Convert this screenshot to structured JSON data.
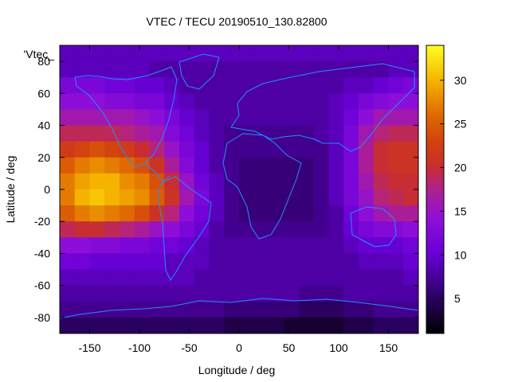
{
  "chart_data": {
    "type": "heatmap",
    "title": "VTEC / TECU 20190510_130.82800",
    "xlabel": "Longitude / deg",
    "ylabel": "Latitude / deg",
    "key_label": "'Vtec_",
    "xlim": [
      -180,
      180
    ],
    "ylim": [
      -90,
      90
    ],
    "x_ticks": [
      -150,
      -100,
      -50,
      0,
      50,
      100,
      150
    ],
    "y_ticks": [
      -80,
      -60,
      -40,
      -20,
      0,
      20,
      40,
      60,
      80
    ],
    "colorbar": {
      "range": [
        1,
        34
      ],
      "ticks": [
        5,
        10,
        15,
        20,
        25,
        30
      ],
      "palette": "black-purple-red-orange-yellow"
    },
    "grid": false,
    "legend": "top-left",
    "overlay": "coastlines",
    "values_description_grid": {
      "lon_step": 15,
      "lat_step": 10,
      "lons": [
        -172.5,
        -157.5,
        -142.5,
        -127.5,
        -112.5,
        -97.5,
        -82.5,
        -67.5,
        -52.5,
        -37.5,
        -22.5,
        -7.5,
        7.5,
        22.5,
        37.5,
        52.5,
        67.5,
        82.5,
        97.5,
        112.5,
        127.5,
        142.5,
        157.5,
        172.5
      ],
      "lats": [
        85,
        75,
        65,
        55,
        45,
        35,
        25,
        15,
        5,
        -5,
        -15,
        -25,
        -35,
        -45,
        -55,
        -65,
        -75,
        -85
      ],
      "vtec": [
        [
          9,
          9,
          9,
          9,
          9,
          9,
          9,
          9,
          9,
          9,
          9,
          9,
          9,
          9,
          9,
          9,
          9,
          9,
          9,
          9,
          9,
          9,
          9,
          9
        ],
        [
          9,
          9,
          9,
          9,
          9,
          9,
          8,
          8,
          8,
          8,
          8,
          8,
          8,
          8,
          8,
          8,
          8,
          8,
          8,
          8,
          8,
          8,
          9,
          9
        ],
        [
          12,
          12,
          12,
          11,
          11,
          10,
          10,
          9,
          8,
          8,
          8,
          8,
          8,
          8,
          8,
          8,
          8,
          8,
          8,
          9,
          9,
          10,
          11,
          12
        ],
        [
          14,
          14,
          14,
          13,
          13,
          12,
          12,
          10,
          9,
          8,
          8,
          8,
          8,
          8,
          8,
          8,
          8,
          8,
          9,
          10,
          12,
          13,
          14,
          14
        ],
        [
          16,
          16,
          16,
          16,
          16,
          15,
          14,
          12,
          10,
          9,
          8,
          8,
          8,
          8,
          8,
          8,
          8,
          8,
          9,
          11,
          14,
          16,
          16,
          16
        ],
        [
          19,
          19,
          19,
          19,
          18,
          17,
          16,
          13,
          11,
          9,
          8,
          7,
          7,
          7,
          7,
          7,
          7,
          8,
          9,
          12,
          16,
          18,
          19,
          19
        ],
        [
          22,
          23,
          24,
          23,
          22,
          20,
          18,
          15,
          12,
          10,
          8,
          7,
          7,
          7,
          7,
          7,
          7,
          7,
          9,
          12,
          17,
          20,
          21,
          21
        ],
        [
          25,
          27,
          28,
          27,
          26,
          24,
          21,
          17,
          13,
          10,
          8,
          7,
          6,
          6,
          6,
          6,
          6,
          7,
          9,
          12,
          17,
          20,
          21,
          21
        ],
        [
          27,
          29,
          30,
          30,
          28,
          27,
          24,
          20,
          15,
          11,
          9,
          7,
          6,
          6,
          6,
          6,
          6,
          7,
          9,
          12,
          16,
          19,
          20,
          20
        ],
        [
          27,
          30,
          31,
          30,
          29,
          28,
          25,
          21,
          16,
          12,
          9,
          7,
          6,
          6,
          6,
          6,
          6,
          7,
          9,
          12,
          15,
          18,
          19,
          20
        ],
        [
          25,
          27,
          28,
          27,
          26,
          24,
          21,
          18,
          14,
          11,
          9,
          7,
          6,
          6,
          6,
          6,
          6,
          7,
          8,
          11,
          14,
          16,
          17,
          17
        ],
        [
          19,
          20,
          20,
          19,
          18,
          17,
          15,
          14,
          12,
          10,
          8,
          7,
          7,
          7,
          7,
          7,
          7,
          7,
          8,
          10,
          12,
          13,
          13,
          14
        ],
        [
          14,
          14,
          13,
          13,
          12,
          12,
          11,
          11,
          10,
          9,
          8,
          8,
          8,
          8,
          8,
          8,
          8,
          8,
          8,
          9,
          10,
          10,
          10,
          11
        ],
        [
          11,
          11,
          10,
          10,
          10,
          10,
          10,
          9,
          9,
          9,
          8,
          8,
          8,
          8,
          8,
          8,
          8,
          8,
          8,
          8,
          9,
          9,
          9,
          10
        ],
        [
          9,
          9,
          9,
          9,
          9,
          9,
          9,
          9,
          9,
          8,
          8,
          8,
          8,
          8,
          8,
          8,
          8,
          8,
          8,
          8,
          8,
          8,
          8,
          9
        ],
        [
          8,
          8,
          8,
          8,
          8,
          8,
          8,
          8,
          8,
          8,
          8,
          8,
          8,
          8,
          8,
          8,
          7,
          7,
          7,
          8,
          8,
          8,
          8,
          8
        ],
        [
          7,
          7,
          7,
          7,
          7,
          7,
          7,
          7,
          7,
          7,
          7,
          6,
          6,
          6,
          6,
          6,
          5,
          5,
          5,
          6,
          6,
          7,
          7,
          7
        ],
        [
          5,
          5,
          5,
          5,
          5,
          5,
          5,
          5,
          5,
          5,
          5,
          4,
          4,
          4,
          4,
          3,
          3,
          3,
          3,
          4,
          4,
          5,
          5,
          5
        ]
      ]
    }
  }
}
